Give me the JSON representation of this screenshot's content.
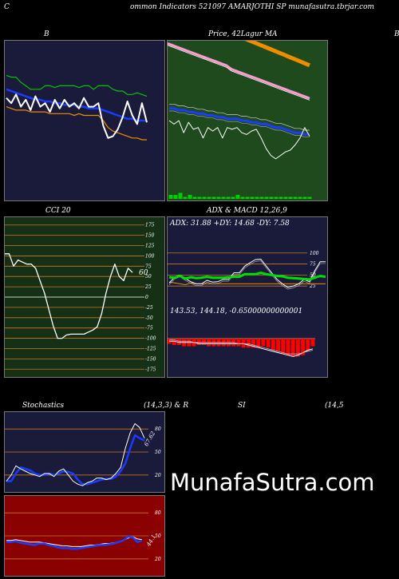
{
  "header": {
    "corner": "C",
    "title": "ommon  Indicators 521097 AMARJOTHI SP munafasutra.tbrjar.com"
  },
  "panels": {
    "bb_title": "B",
    "price_title": "Price,  42Lagur  MA",
    "cci_title": "CCI 20",
    "adx_title": "ADX  & MACD 12,26,9",
    "adx_values": "ADX: 31.88  +DY: 14.68  -DY: 7.58",
    "macd_values": "143.53,  144.18,  -0.65000000000001",
    "cci_last": "60",
    "stoch_title_left": "Stochastics",
    "stoch_title_mid": "(14,3,3) & R",
    "stoch_title_si": "SI",
    "stoch_title_right": "(14,5",
    "stoch_last": "67.62",
    "rsi_last": "44.1",
    "right_edge_letter": "B",
    "left_edge_letter": "C"
  },
  "watermark": "MunafaSutra.com",
  "colors": {
    "navy": "#1a1a3a",
    "green_panel": "#1e4a1e",
    "dark_green": "#163016",
    "rsi_red": "#8b0000",
    "grid_orange": "#c87820",
    "blue": "#1a3cff",
    "orange": "#f08c00",
    "pink": "#ff9ad0"
  },
  "chart_data": [
    {
      "type": "line",
      "name_ref": "bollinger",
      "title": "B",
      "x": [
        1,
        2,
        3,
        4,
        5,
        6,
        7,
        8,
        9,
        10,
        11,
        12,
        13,
        14,
        15,
        16,
        17,
        18,
        19,
        20,
        21,
        22,
        23,
        24,
        25,
        26,
        27,
        28,
        29,
        30
      ],
      "series": [
        {
          "role": "upper",
          "color": "#00c800",
          "values": [
            176,
            175,
            175,
            172,
            170,
            168,
            168,
            168,
            170,
            170,
            169,
            170,
            170,
            170,
            170,
            169,
            170,
            170,
            168,
            170,
            170,
            170,
            168,
            167,
            167,
            165,
            165,
            166,
            165,
            164
          ]
        },
        {
          "role": "middle",
          "color": "#1a3cff",
          "values": [
            168,
            167,
            166,
            165,
            164,
            163,
            162,
            162,
            161,
            161,
            160,
            160,
            159,
            159,
            159,
            158,
            158,
            157,
            157,
            157,
            156,
            155,
            154,
            153,
            152,
            151,
            151,
            150,
            150,
            150
          ]
        },
        {
          "role": "lower",
          "color": "#f08c00",
          "values": [
            158,
            157,
            156,
            156,
            156,
            155,
            155,
            155,
            155,
            154,
            154,
            154,
            154,
            154,
            153,
            154,
            153,
            153,
            153,
            153,
            150,
            146,
            144,
            143,
            142,
            141,
            140,
            140,
            139,
            139
          ]
        },
        {
          "role": "price",
          "color": "#ffffff",
          "values": [
            163,
            160,
            165,
            158,
            162,
            156,
            164,
            158,
            160,
            155,
            162,
            157,
            162,
            158,
            160,
            157,
            163,
            158,
            158,
            160,
            147,
            140,
            141,
            145,
            152,
            161,
            153,
            148,
            160,
            149
          ]
        }
      ]
    },
    {
      "type": "line",
      "name_ref": "price_ma",
      "title": "Price,  42Lagur  MA",
      "x": [
        1,
        2,
        3,
        4,
        5,
        6,
        7,
        8,
        9,
        10,
        11,
        12,
        13,
        14,
        15,
        16,
        17,
        18,
        19,
        20,
        21,
        22,
        23,
        24,
        25,
        26,
        27,
        28,
        29,
        30
      ],
      "series": [
        {
          "role": "ma_long",
          "color": "#f08c00",
          "values": [
            200,
            199,
            198,
            197,
            196,
            195,
            194,
            193,
            192,
            191,
            190,
            189,
            188,
            187,
            186,
            185,
            184,
            183,
            182,
            181,
            180,
            179,
            178,
            177,
            176,
            175,
            174,
            173,
            172,
            171
          ]
        },
        {
          "role": "ma_mid",
          "color": "#ff9ad0",
          "values": [
            190,
            189,
            188,
            187,
            186,
            185,
            184,
            183,
            182,
            181,
            180,
            179,
            178,
            176,
            175,
            174,
            173,
            172,
            171,
            170,
            169,
            168,
            167,
            166,
            165,
            164,
            163,
            162,
            161,
            160
          ]
        },
        {
          "role": "ma_short",
          "color": "#1a3cff",
          "values": [
            157,
            157,
            156,
            156,
            155,
            155,
            154,
            154,
            153,
            153,
            152,
            152,
            151,
            151,
            151,
            150,
            150,
            149,
            149,
            148,
            148,
            147,
            146,
            146,
            145,
            144,
            143,
            143,
            142,
            142
          ]
        },
        {
          "role": "price",
          "color": "#ffffff",
          "values": [
            150,
            148,
            150,
            143,
            149,
            145,
            146,
            140,
            146,
            144,
            146,
            140,
            146,
            145,
            146,
            143,
            142,
            144,
            145,
            140,
            134,
            130,
            128,
            130,
            132,
            133,
            136,
            140,
            146,
            141
          ]
        }
      ],
      "volume": [
        2,
        2,
        3,
        1,
        2,
        1,
        1,
        1,
        1,
        1,
        1,
        1,
        1,
        1,
        2,
        1,
        1,
        1,
        1,
        1,
        1,
        1,
        1,
        1,
        1,
        1,
        1,
        1,
        1,
        1
      ]
    },
    {
      "type": "line",
      "name_ref": "cci",
      "title": "CCI 20",
      "ylim": [
        -175,
        175
      ],
      "yticks": [
        175,
        150,
        125,
        100,
        75,
        50,
        25,
        0,
        -25,
        -50,
        -75,
        -100,
        -125,
        -150,
        -175
      ],
      "x": [
        1,
        2,
        3,
        4,
        5,
        6,
        7,
        8,
        9,
        10,
        11,
        12,
        13,
        14,
        15,
        16,
        17,
        18,
        19,
        20,
        21,
        22,
        23,
        24,
        25,
        26,
        27,
        28,
        29,
        30
      ],
      "series": [
        {
          "role": "cci",
          "color": "#ffffff",
          "values": [
            105,
            105,
            75,
            90,
            85,
            80,
            80,
            70,
            40,
            10,
            -30,
            -70,
            -100,
            -100,
            -92,
            -90,
            -90,
            -90,
            -90,
            -85,
            -80,
            -72,
            -40,
            10,
            50,
            80,
            50,
            40,
            70,
            60
          ]
        }
      ]
    },
    {
      "type": "line",
      "name_ref": "adx",
      "title": "ADX  & MACD 12,26,9",
      "yticks": [
        100,
        75,
        50,
        25
      ],
      "x": [
        1,
        2,
        3,
        4,
        5,
        6,
        7,
        8,
        9,
        10,
        11,
        12,
        13,
        14,
        15,
        16,
        17,
        18,
        19,
        20,
        21,
        22,
        23,
        24,
        25,
        26,
        27,
        28,
        29,
        30
      ],
      "series": [
        {
          "role": "adx",
          "color": "#00e000",
          "values": [
            45,
            44,
            48,
            42,
            45,
            43,
            44,
            46,
            44,
            44,
            44,
            45,
            46,
            46,
            52,
            52,
            52,
            55,
            52,
            50,
            48,
            47,
            44,
            43,
            42,
            41,
            40,
            44,
            48,
            46
          ]
        },
        {
          "role": "plus_di",
          "color": "#ffffff",
          "values": [
            32,
            45,
            50,
            42,
            35,
            30,
            30,
            38,
            34,
            35,
            40,
            40,
            55,
            55,
            70,
            78,
            85,
            86,
            70,
            55,
            40,
            30,
            22,
            25,
            30,
            40,
            35,
            60,
            80,
            80
          ]
        },
        {
          "role": "minus_di",
          "color": "#f08c00",
          "values": [
            34,
            32,
            30,
            28,
            32,
            30,
            30,
            30,
            30,
            30,
            30,
            30,
            30,
            30,
            30,
            30,
            30,
            30,
            30,
            30,
            30,
            30,
            30,
            30,
            30,
            30,
            30,
            30,
            30,
            30
          ]
        }
      ]
    },
    {
      "type": "bar",
      "name_ref": "macd",
      "series": [
        {
          "role": "histogram",
          "color": "#ff0000",
          "values": [
            -4,
            -5,
            -5,
            -6,
            -6,
            -6,
            -5,
            -5,
            -6,
            -6,
            -6,
            -6,
            -6,
            -6,
            -6,
            -7,
            -7,
            -7,
            -7,
            -6,
            -7,
            -9,
            -10,
            -12,
            -13,
            -14,
            -14,
            -13,
            -10,
            -6
          ]
        },
        {
          "role": "macd",
          "color": "#ffffff",
          "values": [
            -2,
            -2,
            -3,
            -3,
            -3,
            -3,
            -4,
            -4,
            -4,
            -4,
            -4,
            -4,
            -4,
            -4,
            -4,
            -4,
            -5,
            -6,
            -7,
            -8,
            -9,
            -10,
            -11,
            -12,
            -13,
            -14,
            -13,
            -11,
            -9,
            -8
          ]
        },
        {
          "role": "signal",
          "color": "#bbbbbb",
          "values": [
            -1,
            -1,
            -2,
            -2,
            -2,
            -3,
            -3,
            -3,
            -3,
            -3,
            -3,
            -3,
            -3,
            -3,
            -4,
            -4,
            -4,
            -5,
            -6,
            -7,
            -8,
            -9,
            -10,
            -11,
            -12,
            -12,
            -12,
            -11,
            -10,
            -9
          ]
        }
      ]
    },
    {
      "type": "line",
      "name_ref": "stochastics",
      "title": "Stochastics",
      "yticks": [
        80,
        50,
        20
      ],
      "x": [
        1,
        2,
        3,
        4,
        5,
        6,
        7,
        8,
        9,
        10,
        11,
        12,
        13,
        14,
        15,
        16,
        17,
        18,
        19,
        20,
        21,
        22,
        23,
        24,
        25,
        26,
        27,
        28,
        29,
        30
      ],
      "series": [
        {
          "role": "k",
          "color": "#1a3cff",
          "values": [
            12,
            12,
            22,
            30,
            28,
            26,
            22,
            20,
            20,
            22,
            20,
            22,
            25,
            24,
            22,
            14,
            8,
            8,
            10,
            12,
            14,
            15,
            15,
            18,
            25,
            35,
            55,
            72,
            68,
            65
          ]
        },
        {
          "role": "d",
          "color": "#ffffff",
          "values": [
            12,
            20,
            32,
            28,
            25,
            22,
            20,
            18,
            22,
            22,
            18,
            25,
            28,
            20,
            12,
            8,
            6,
            10,
            12,
            16,
            16,
            14,
            16,
            22,
            30,
            55,
            75,
            87,
            82,
            68
          ]
        }
      ]
    },
    {
      "type": "line",
      "name_ref": "rsi",
      "title": "RSI",
      "yticks": [
        80,
        50,
        20
      ],
      "x": [
        1,
        2,
        3,
        4,
        5,
        6,
        7,
        8,
        9,
        10,
        11,
        12,
        13,
        14,
        15,
        16,
        17,
        18,
        19,
        20,
        21,
        22,
        23,
        24,
        25,
        26,
        27,
        28,
        29,
        30
      ],
      "series": [
        {
          "role": "rsi",
          "color": "#1a3cff",
          "values": [
            42,
            42,
            43,
            41,
            40,
            39,
            38,
            40,
            40,
            38,
            37,
            35,
            34,
            34,
            33,
            33,
            34,
            35,
            36,
            37,
            38,
            38,
            39,
            40,
            42,
            44,
            49,
            48,
            42,
            44
          ]
        },
        {
          "role": "signal",
          "color": "#ffffff",
          "values": [
            44,
            44,
            45,
            44,
            43,
            42,
            42,
            42,
            41,
            40,
            39,
            38,
            37,
            37,
            36,
            36,
            36,
            37,
            38,
            38,
            39,
            40,
            40,
            41,
            42,
            44,
            47,
            49,
            46,
            45
          ]
        }
      ]
    }
  ]
}
